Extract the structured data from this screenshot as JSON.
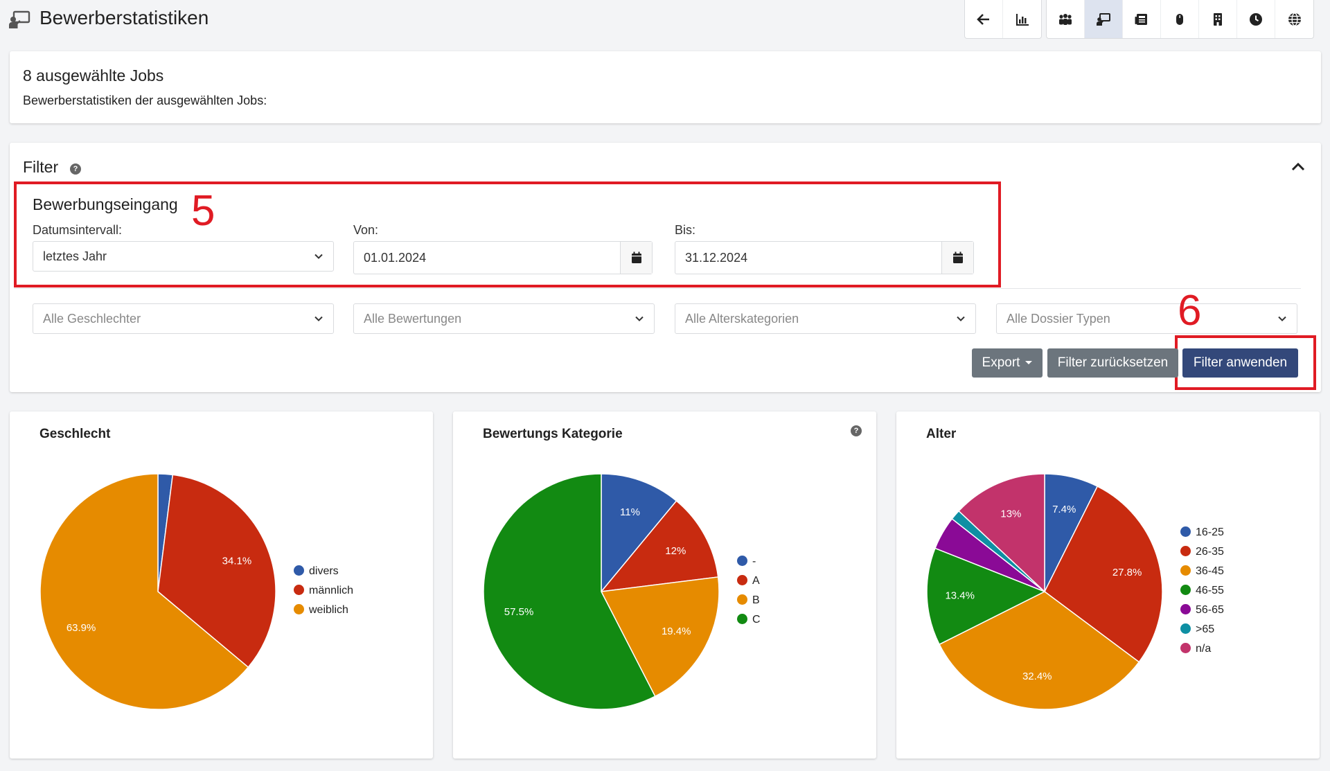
{
  "header": {
    "title": "Bewerberstatistiken",
    "icons": [
      "arrow-left-icon",
      "bar-chart-icon",
      "people-icon",
      "chalkboard-user-icon",
      "newspaper-icon",
      "mouse-icon",
      "building-icon",
      "clock-icon",
      "globe-icon"
    ]
  },
  "jobs": {
    "heading": "8 ausgewählte Jobs",
    "subtitle": "Bewerberstatistiken der ausgewählten Jobs:"
  },
  "filter": {
    "title": "Filter",
    "section_label": "Bewerbungseingang",
    "interval_label": "Datumsintervall:",
    "interval_value": "letztes Jahr",
    "from_label": "Von:",
    "from_value": "01.01.2024",
    "to_label": "Bis:",
    "to_value": "31.12.2024",
    "gender_placeholder": "Alle Geschlechter",
    "rating_placeholder": "Alle Bewertungen",
    "age_placeholder": "Alle Alterskategorien",
    "dossier_placeholder": "Alle Dossier Typen",
    "export_label": "Export",
    "reset_label": "Filter zurücksetzen",
    "apply_label": "Filter anwenden"
  },
  "annotations": {
    "box5": "5",
    "box6": "6"
  },
  "colors": {
    "blue": "#2f5aa8",
    "red": "#c82b10",
    "orange": "#e68b00",
    "green": "#128a12",
    "purple": "#8a0a96",
    "teal": "#0e8fa3",
    "pink": "#c2336b",
    "primary_button": "#33487a",
    "annotation_red": "#e01b24"
  },
  "chart_data": [
    {
      "type": "pie",
      "title": "Geschlecht",
      "categories": [
        "divers",
        "männlich",
        "weiblich"
      ],
      "values": [
        2.0,
        34.1,
        63.9
      ],
      "labels": [
        "",
        "34.1%",
        "63.9%"
      ],
      "colors": [
        "#2f5aa8",
        "#c82b10",
        "#e68b00"
      ],
      "legend": "right"
    },
    {
      "type": "pie",
      "title": "Bewertungs Kategorie",
      "categories": [
        "-",
        "A",
        "B",
        "C"
      ],
      "values": [
        11,
        12,
        19.4,
        57.5
      ],
      "labels": [
        "11%",
        "12%",
        "19.4%",
        "57.5%"
      ],
      "colors": [
        "#2f5aa8",
        "#c82b10",
        "#e68b00",
        "#128a12"
      ],
      "legend": "right"
    },
    {
      "type": "pie",
      "title": "Alter",
      "categories": [
        "16-25",
        "26-35",
        "36-45",
        "46-55",
        "56-65",
        ">65",
        "n/a"
      ],
      "values": [
        7.4,
        27.8,
        32.4,
        13.4,
        4.6,
        1.4,
        13
      ],
      "labels": [
        "7.4%",
        "27.8%",
        "32.4%",
        "13.4%",
        "",
        "",
        "13%"
      ],
      "colors": [
        "#2f5aa8",
        "#c82b10",
        "#e68b00",
        "#128a12",
        "#8a0a96",
        "#0e8fa3",
        "#c2336b"
      ],
      "legend": "right"
    }
  ]
}
